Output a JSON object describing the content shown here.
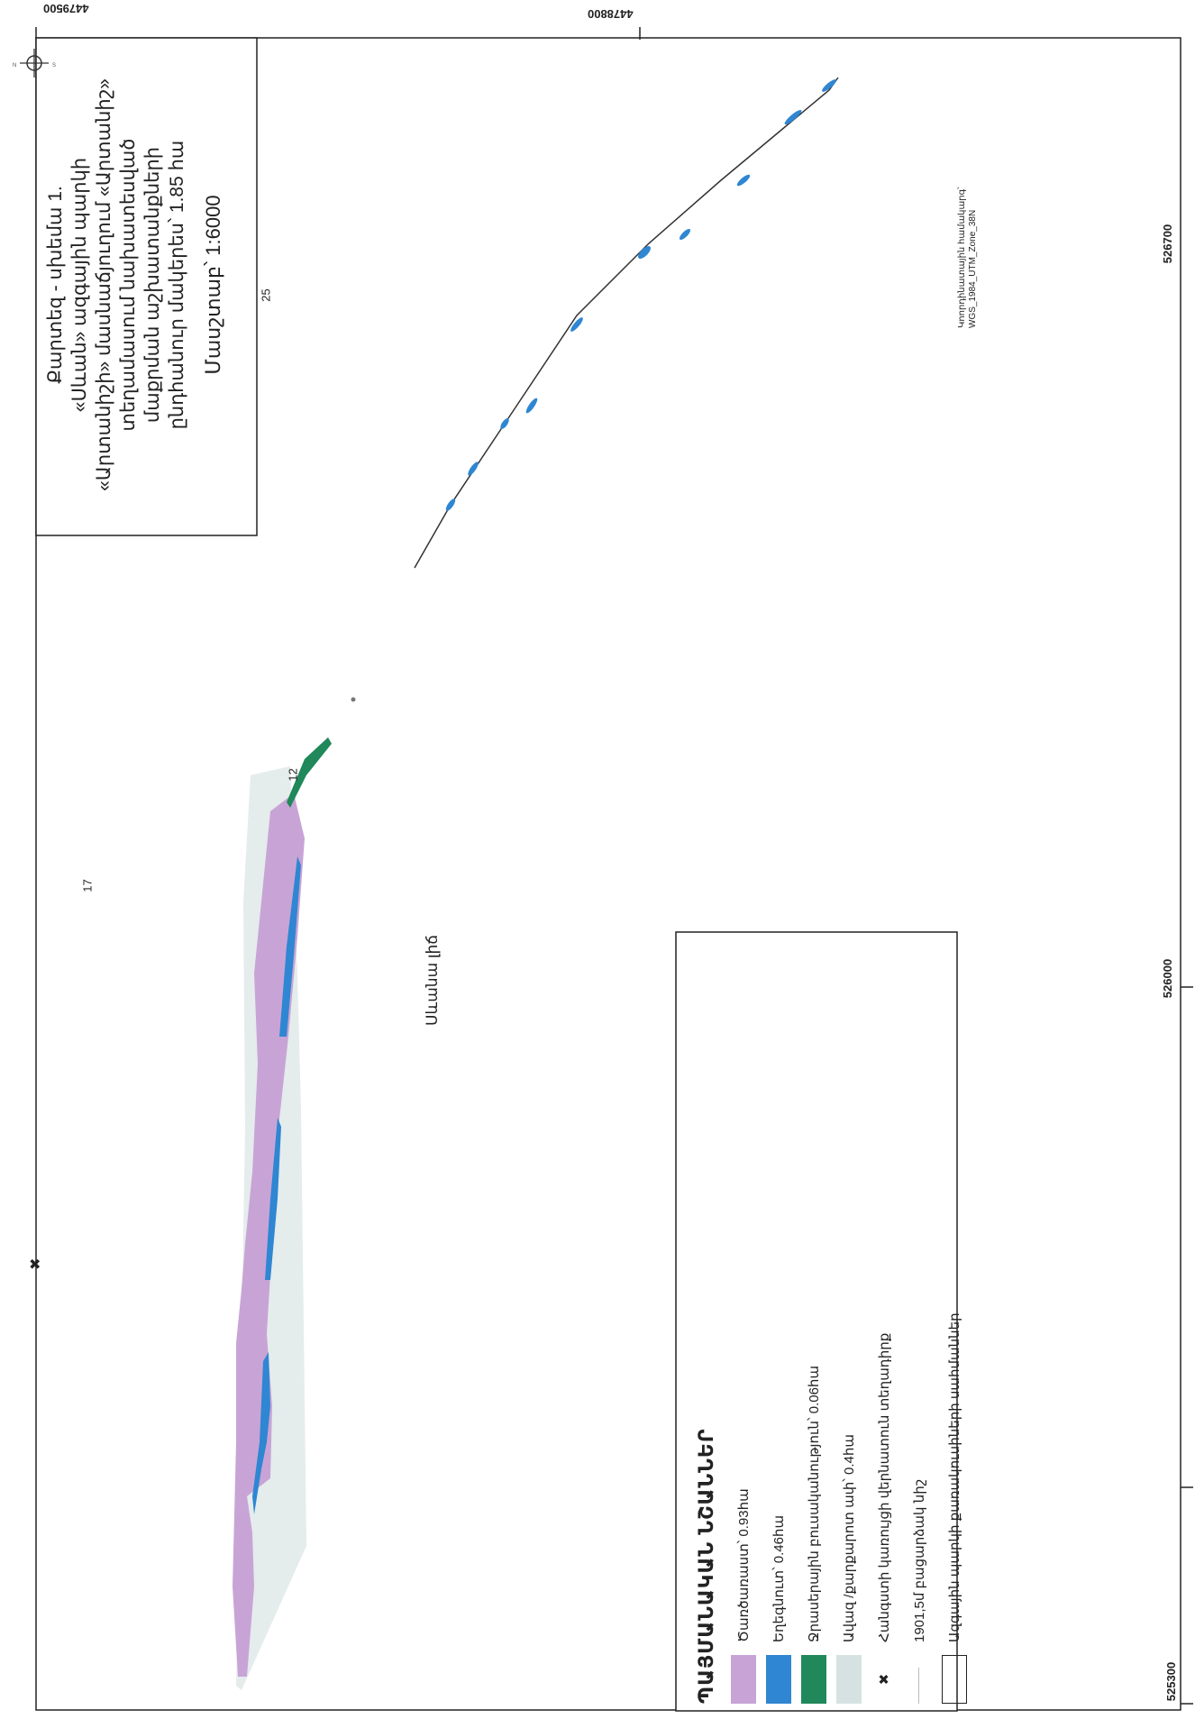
{
  "map": {
    "coords": {
      "top_left": "4479500",
      "top_right": "4478800",
      "bottom_left": "525300",
      "bottom_mid": "526000",
      "bottom_right": "526700"
    },
    "plot_labels": [
      "17",
      "12",
      "25"
    ],
    "lake_label": "Սևանա լիճ",
    "projection": {
      "line1": "Կոորդինատային համակարգ՝",
      "line2": "WGS_1984_UTM_Zone_38N"
    },
    "colors": {
      "shrub": "#c8a4d6",
      "grass": "#2f86d2",
      "wet": "#20885a",
      "sand": "#dfe6e6"
    }
  },
  "title_box": {
    "lines": [
      "Քարտեզ - սխեմա 1.",
      "«Սևան» ազգային պարկի",
      "«Արտանիշի» մասնաճյուղում «Արտանիշ»",
      "տեղամասում նախատեսված",
      "մաքրման աշխատանքների",
      "ընդհանուր մակերես՝ 1.85 հա"
    ],
    "scale": "Մասշտաբ՝ 1:6000"
  },
  "legend": {
    "title": "ՊԱՅՄԱՆԱԿԱՆ ՆՇԱՆՆԵՐ",
    "items": [
      {
        "label": "Ծառծառաստ՝ 0.93հա",
        "color": "#c8a4d6",
        "kind": "swatch"
      },
      {
        "label": "Եղեգնուտ՝ 0.46հա",
        "color": "#2f86d2",
        "kind": "swatch"
      },
      {
        "label": "Ջրասերային բուսականություն՝ 0.06հա",
        "color": "#20885a",
        "kind": "swatch"
      },
      {
        "label": "Ավազ /քարքարոտ ափ՝ 0.4հա",
        "color": "#d6e2e2",
        "kind": "swatch"
      },
      {
        "label": "Հանգստի կառույցի վերնատուն տեղադիրք",
        "kind": "cross"
      },
      {
        "label": "1901,5մ բացարձակ նիշ",
        "kind": "line"
      },
      {
        "label": "Ազգային պարկի քառակուսիների սահմաններ",
        "kind": "box"
      }
    ]
  }
}
